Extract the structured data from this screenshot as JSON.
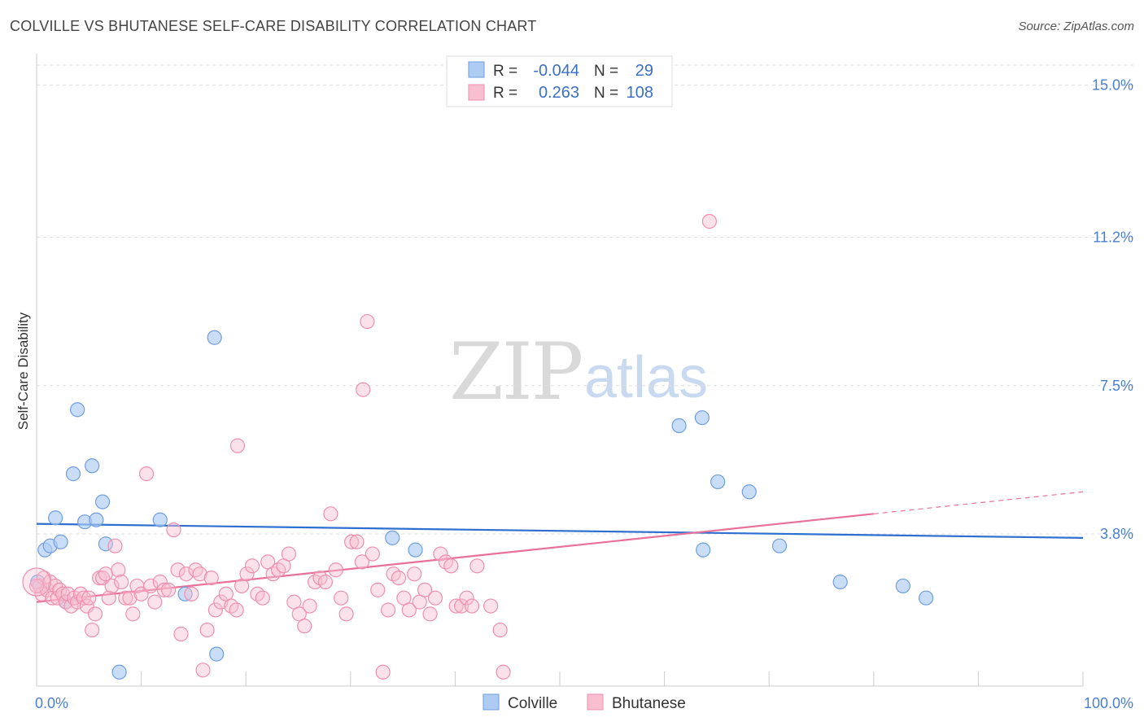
{
  "title": "COLVILLE VS BHUTANESE SELF-CARE DISABILITY CORRELATION CHART",
  "source": "Source: ZipAtlas.com",
  "watermark": {
    "zip": "ZIP",
    "atlas": "atlas"
  },
  "legend": {
    "rows": [
      {
        "r_label": "R =",
        "r_value": "-0.044",
        "n_label": "N =",
        "n_value": "29"
      },
      {
        "r_label": "R =",
        "r_value": "0.263",
        "n_label": "N =",
        "n_value": "108"
      }
    ]
  },
  "bottom_legend": [
    "Colville",
    "Bhutanese"
  ],
  "colors": {
    "colville_fill": "#aecbf2",
    "colville_stroke": "#6f9ee0",
    "colville_line": "#2f6fcf",
    "bhutanese_fill": "#f7bfd0",
    "bhutanese_stroke": "#ee8fae",
    "bhutanese_line": "#e8709a",
    "tick_label": "#4a7fd0",
    "grid": "#dddddd"
  },
  "chart_data": {
    "type": "scatter",
    "title": "COLVILLE VS BHUTANESE SELF-CARE DISABILITY CORRELATION CHART",
    "xlabel": "",
    "ylabel": "Self-Care Disability",
    "xlim": [
      0,
      100
    ],
    "ylim": [
      0,
      15.5
    ],
    "x_tick_labels": [
      "0.0%",
      "100.0%"
    ],
    "y_ticks": [
      3.8,
      7.5,
      11.2,
      15.0
    ],
    "y_tick_labels": [
      "3.8%",
      "7.5%",
      "11.2%",
      "15.0%"
    ],
    "grid": true,
    "legend_position": "top-center",
    "series": [
      {
        "name": "Colville",
        "r": -0.044,
        "n": 29,
        "trend": {
          "x": [
            0,
            100
          ],
          "y": [
            4.05,
            3.7
          ]
        },
        "points": [
          [
            0.1,
            2.6
          ],
          [
            0.8,
            3.4
          ],
          [
            1.3,
            3.5
          ],
          [
            1.8,
            4.2
          ],
          [
            2.3,
            3.6
          ],
          [
            2.8,
            2.1
          ],
          [
            3.5,
            5.3
          ],
          [
            3.9,
            6.9
          ],
          [
            4.6,
            4.1
          ],
          [
            5.3,
            5.5
          ],
          [
            5.7,
            4.15
          ],
          [
            6.3,
            4.6
          ],
          [
            6.6,
            3.55
          ],
          [
            7.9,
            0.35
          ],
          [
            11.8,
            4.15
          ],
          [
            14.2,
            2.3
          ],
          [
            17.0,
            8.7
          ],
          [
            17.2,
            0.8
          ],
          [
            34.0,
            3.7
          ],
          [
            36.2,
            3.4
          ],
          [
            61.4,
            6.5
          ],
          [
            63.6,
            6.7
          ],
          [
            63.7,
            3.4
          ],
          [
            65.1,
            5.1
          ],
          [
            68.1,
            4.85
          ],
          [
            71.0,
            3.5
          ],
          [
            76.8,
            2.6
          ],
          [
            82.8,
            2.5
          ],
          [
            85.0,
            2.2
          ]
        ]
      },
      {
        "name": "Bhutanese",
        "r": 0.263,
        "n": 108,
        "trend": {
          "x": [
            0,
            80
          ],
          "y": [
            2.1,
            4.3
          ]
        },
        "trend_dashed": {
          "x": [
            80,
            100
          ],
          "y": [
            4.3,
            4.85
          ]
        },
        "points": [
          [
            0.3,
            2.5
          ],
          [
            0.5,
            2.3
          ],
          [
            0.7,
            2.7
          ],
          [
            1.0,
            2.4
          ],
          [
            1.3,
            2.6
          ],
          [
            1.5,
            2.2
          ],
          [
            1.8,
            2.5
          ],
          [
            2.0,
            2.2
          ],
          [
            2.2,
            2.4
          ],
          [
            2.5,
            2.3
          ],
          [
            2.8,
            2.1
          ],
          [
            3.0,
            2.3
          ],
          [
            3.3,
            2.0
          ],
          [
            3.6,
            2.2
          ],
          [
            3.9,
            2.1
          ],
          [
            4.2,
            2.3
          ],
          [
            4.5,
            2.2
          ],
          [
            4.8,
            2.0
          ],
          [
            5.0,
            2.2
          ],
          [
            5.3,
            1.4
          ],
          [
            5.6,
            1.8
          ],
          [
            6.0,
            2.7
          ],
          [
            6.3,
            2.7
          ],
          [
            6.6,
            2.8
          ],
          [
            6.9,
            2.2
          ],
          [
            7.2,
            2.5
          ],
          [
            7.5,
            3.5
          ],
          [
            7.8,
            2.9
          ],
          [
            8.1,
            2.6
          ],
          [
            8.5,
            2.2
          ],
          [
            8.9,
            2.2
          ],
          [
            9.2,
            1.8
          ],
          [
            9.6,
            2.5
          ],
          [
            10.0,
            2.3
          ],
          [
            10.5,
            5.3
          ],
          [
            10.9,
            2.5
          ],
          [
            11.3,
            2.1
          ],
          [
            11.8,
            2.6
          ],
          [
            12.2,
            2.4
          ],
          [
            12.6,
            2.4
          ],
          [
            13.1,
            3.9
          ],
          [
            13.5,
            2.9
          ],
          [
            13.8,
            1.3
          ],
          [
            14.3,
            2.8
          ],
          [
            14.8,
            2.3
          ],
          [
            15.2,
            2.9
          ],
          [
            15.6,
            2.8
          ],
          [
            15.9,
            0.4
          ],
          [
            16.3,
            1.4
          ],
          [
            16.7,
            2.7
          ],
          [
            17.1,
            1.9
          ],
          [
            17.6,
            2.1
          ],
          [
            18.1,
            2.3
          ],
          [
            18.6,
            2.0
          ],
          [
            19.1,
            1.9
          ],
          [
            19.6,
            2.5
          ],
          [
            20.1,
            2.8
          ],
          [
            20.6,
            3.0
          ],
          [
            21.1,
            2.3
          ],
          [
            21.6,
            2.2
          ],
          [
            22.1,
            3.1
          ],
          [
            22.6,
            2.8
          ],
          [
            23.1,
            2.9
          ],
          [
            23.6,
            3.0
          ],
          [
            24.1,
            3.3
          ],
          [
            24.6,
            2.1
          ],
          [
            25.1,
            1.8
          ],
          [
            25.6,
            1.5
          ],
          [
            26.1,
            2.0
          ],
          [
            26.6,
            2.6
          ],
          [
            27.1,
            2.7
          ],
          [
            27.6,
            2.6
          ],
          [
            28.1,
            4.3
          ],
          [
            28.6,
            2.9
          ],
          [
            29.1,
            2.2
          ],
          [
            29.6,
            1.8
          ],
          [
            30.1,
            3.6
          ],
          [
            30.6,
            3.6
          ],
          [
            31.1,
            3.1
          ],
          [
            31.6,
            9.1
          ],
          [
            32.1,
            3.3
          ],
          [
            32.6,
            2.4
          ],
          [
            33.1,
            0.35
          ],
          [
            33.6,
            1.9
          ],
          [
            34.1,
            2.8
          ],
          [
            34.6,
            2.7
          ],
          [
            35.1,
            2.2
          ],
          [
            35.6,
            1.9
          ],
          [
            36.1,
            2.8
          ],
          [
            36.6,
            2.1
          ],
          [
            37.1,
            2.4
          ],
          [
            37.6,
            1.8
          ],
          [
            38.1,
            2.2
          ],
          [
            38.6,
            3.3
          ],
          [
            39.1,
            3.1
          ],
          [
            39.6,
            3.0
          ],
          [
            40.1,
            2.0
          ],
          [
            40.6,
            2.0
          ],
          [
            41.1,
            2.2
          ],
          [
            41.6,
            2.0
          ],
          [
            42.1,
            3.0
          ],
          [
            43.4,
            2.0
          ],
          [
            44.3,
            1.4
          ],
          [
            44.6,
            0.35
          ],
          [
            31.2,
            7.4
          ],
          [
            19.2,
            6.0
          ],
          [
            64.3,
            11.6
          ],
          [
            0.0,
            2.5
          ]
        ]
      }
    ]
  }
}
